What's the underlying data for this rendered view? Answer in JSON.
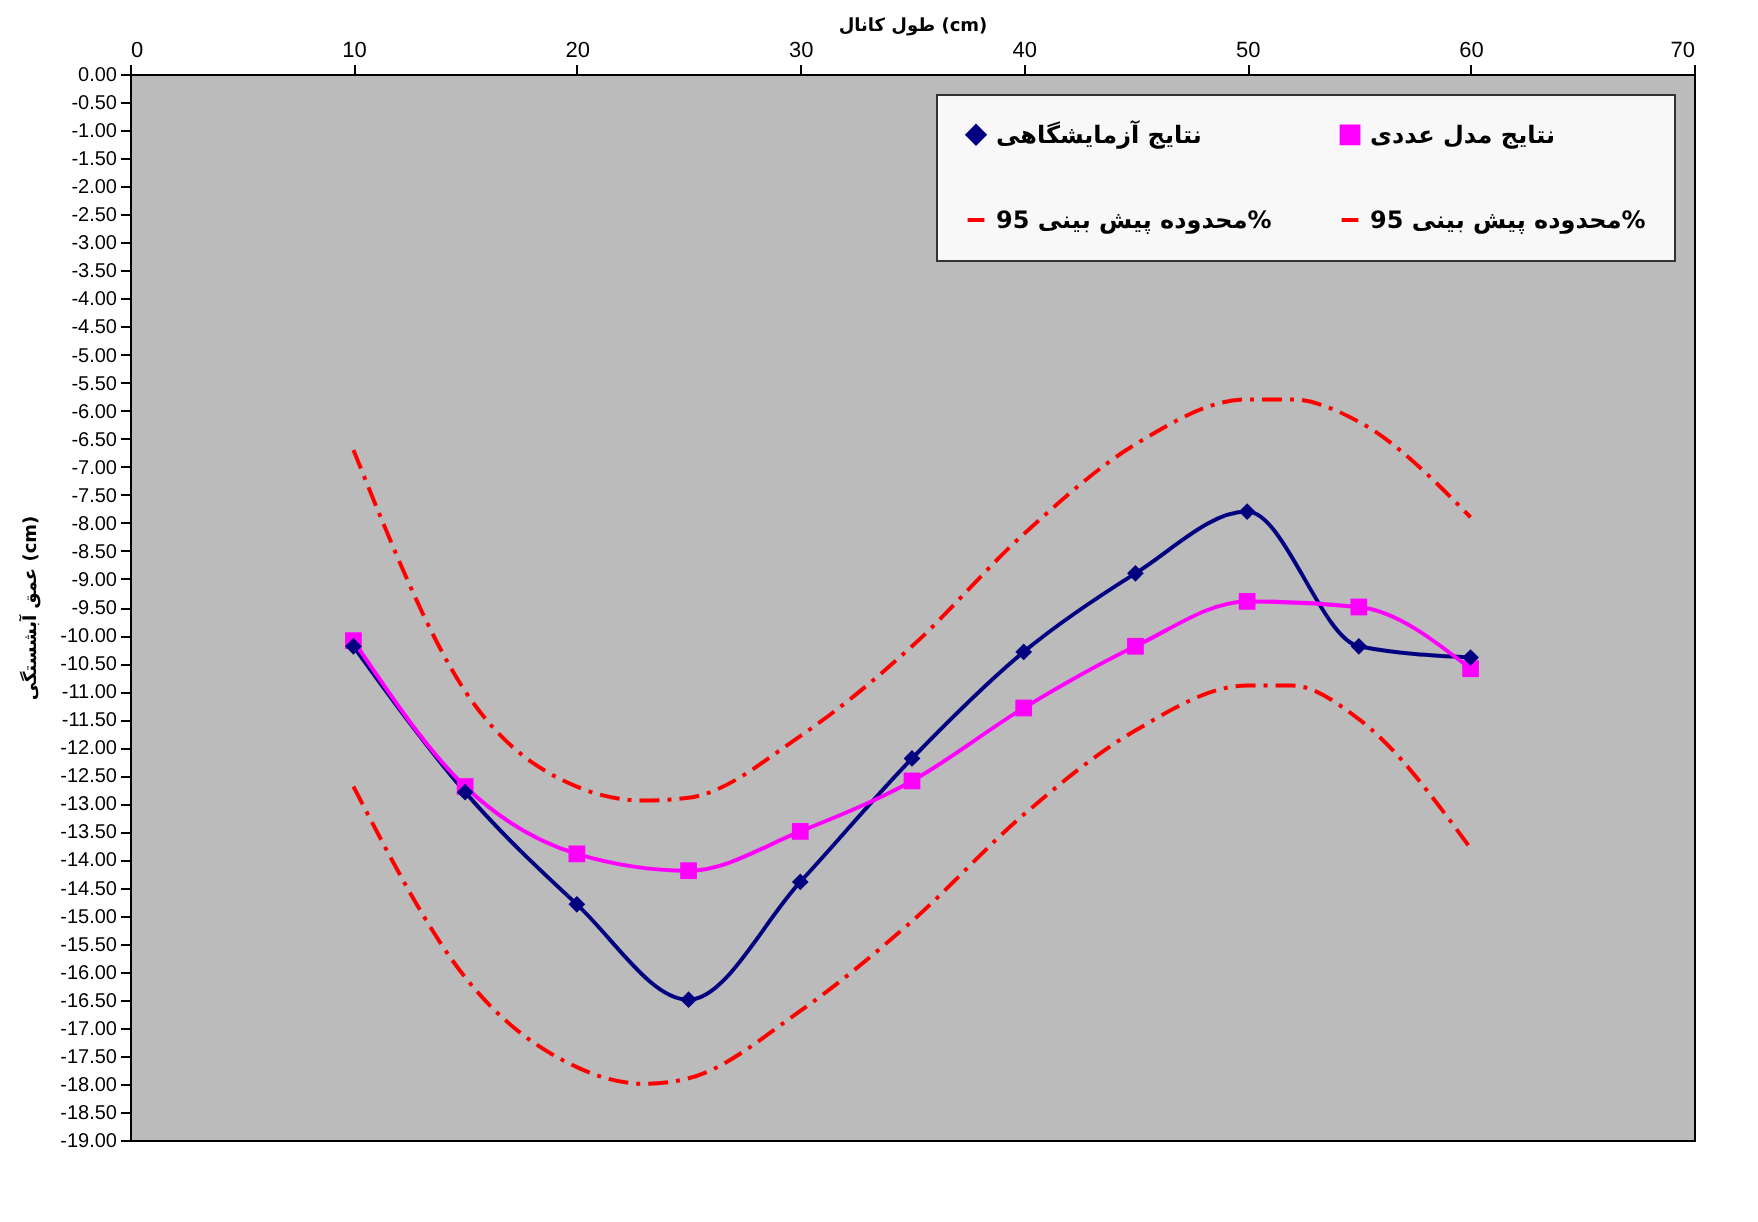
{
  "chart_data": {
    "type": "line",
    "xlabel": "طول کانال (cm)",
    "ylabel": "عمق آبشستگی (cm)",
    "xlim": [
      0,
      70
    ],
    "xticks": [
      0,
      10,
      20,
      30,
      40,
      50,
      60,
      70
    ],
    "ylim": [
      -19,
      0
    ],
    "yticks": [
      {
        "value": 0,
        "label": "0.00"
      },
      {
        "value": -0.5,
        "label": "-0.50"
      },
      {
        "value": -1,
        "label": "-1.00"
      },
      {
        "value": -1.5,
        "label": "-1.50"
      },
      {
        "value": -2,
        "label": "-2.00"
      },
      {
        "value": -2.5,
        "label": "-2.50"
      },
      {
        "value": -3,
        "label": "-3.00"
      },
      {
        "value": -3.5,
        "label": "-3.50"
      },
      {
        "value": -4,
        "label": "-4.00"
      },
      {
        "value": -4.5,
        "label": "-4.50"
      },
      {
        "value": -5,
        "label": "-5.00"
      },
      {
        "value": -5.5,
        "label": "-5.50"
      },
      {
        "value": -6,
        "label": "-6.00"
      },
      {
        "value": -6.5,
        "label": "-6.50"
      },
      {
        "value": -7,
        "label": "-7.00"
      },
      {
        "value": -7.5,
        "label": "-7.50"
      },
      {
        "value": -8,
        "label": "-8.00"
      },
      {
        "value": -8.5,
        "label": "-8.50"
      },
      {
        "value": -9,
        "label": "-9.00"
      },
      {
        "value": -9.5,
        "label": "-9.50"
      },
      {
        "value": -10,
        "label": "-10.00"
      },
      {
        "value": -10.5,
        "label": "-10.50"
      },
      {
        "value": -11,
        "label": "-11.00"
      },
      {
        "value": -11.5,
        "label": "-11.50"
      },
      {
        "value": -12,
        "label": "-12.00"
      },
      {
        "value": -12.5,
        "label": "-12.50"
      },
      {
        "value": -13,
        "label": "-13.00"
      },
      {
        "value": -13.5,
        "label": "-13.50"
      },
      {
        "value": -14,
        "label": "-14.00"
      },
      {
        "value": -14.5,
        "label": "-14.50"
      },
      {
        "value": -15,
        "label": "-15.00"
      },
      {
        "value": -15.5,
        "label": "-15.50"
      },
      {
        "value": -16,
        "label": "-16.00"
      },
      {
        "value": -16.5,
        "label": "-16.50"
      },
      {
        "value": -17,
        "label": "-17.00"
      },
      {
        "value": -17.5,
        "label": "-17.50"
      },
      {
        "value": -18,
        "label": "-18.00"
      },
      {
        "value": -18.5,
        "label": "-18.50"
      },
      {
        "value": -19,
        "label": "-19.00"
      }
    ],
    "legend": "top right",
    "series": [
      {
        "name": "نتایج  آزمایشگاهی",
        "color": "#000080",
        "marker": "diamond",
        "line_style": "solid",
        "x": [
          10,
          15,
          20,
          25,
          30,
          35,
          40,
          45,
          50,
          55,
          60
        ],
        "values": [
          -10.2,
          -12.8,
          -14.8,
          -16.5,
          -14.4,
          -12.2,
          -10.3,
          -8.9,
          -7.8,
          -10.2,
          -10.4
        ]
      },
      {
        "name": "نتایج مدل عددی",
        "color": "#ff00ff",
        "marker": "square",
        "line_style": "solid",
        "x": [
          10,
          15,
          20,
          25,
          30,
          35,
          40,
          45,
          50,
          55,
          60
        ],
        "values": [
          -10.1,
          -12.7,
          -13.9,
          -14.2,
          -13.5,
          -12.6,
          -11.3,
          -10.2,
          -9.4,
          -9.5,
          -10.6
        ]
      },
      {
        "name": "محدوده پیش بینی 95%",
        "color": "#ff0000",
        "marker": "none",
        "line_style": "dashed",
        "x": [
          10,
          15,
          20,
          23,
          25,
          30,
          35,
          40,
          45,
          50,
          52,
          55,
          60
        ],
        "values": [
          -6.7,
          -11,
          -12.7,
          -12.95,
          -12.9,
          -11.8,
          -10.2,
          -8.2,
          -6.6,
          -5.8,
          -5.8,
          -6.2,
          -7.9
        ]
      },
      {
        "name": "محدوده پیش بینی 95%",
        "color": "#ff0000",
        "marker": "none",
        "line_style": "dashed",
        "x": [
          10,
          15,
          20,
          23,
          25,
          30,
          35,
          40,
          45,
          50,
          52,
          55,
          60
        ],
        "values": [
          -12.7,
          -16.1,
          -17.7,
          -18,
          -17.9,
          -16.7,
          -15.1,
          -13.2,
          -11.7,
          -10.9,
          -10.9,
          -11.5,
          -13.8
        ]
      }
    ]
  }
}
